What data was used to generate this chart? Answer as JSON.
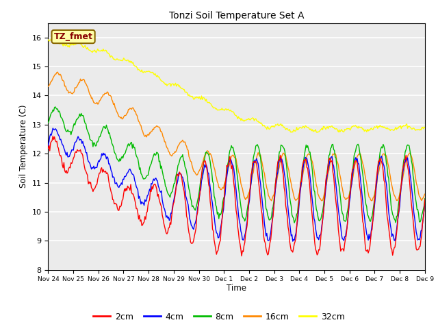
{
  "title": "Tonzi Soil Temperature Set A",
  "ylabel": "Soil Temperature (C)",
  "xlabel": "Time",
  "ylim": [
    8.0,
    16.5
  ],
  "yticks": [
    8.0,
    9.0,
    10.0,
    11.0,
    12.0,
    13.0,
    14.0,
    15.0,
    16.0
  ],
  "bg_color": "#ebebeb",
  "fig_color": "#ffffff",
  "annotation_text": "TZ_fmet",
  "annotation_bg": "#ffffaa",
  "annotation_border": "#aa8800",
  "legend_entries": [
    "2cm",
    "4cm",
    "8cm",
    "16cm",
    "32cm"
  ],
  "legend_colors": [
    "#ff0000",
    "#0000ff",
    "#00bb00",
    "#ff8800",
    "#ffff00"
  ],
  "line_colors": [
    "#ff0000",
    "#0000ff",
    "#00bb00",
    "#ff8800",
    "#ffff00"
  ],
  "n_points": 480,
  "x_tick_labels": [
    "Nov 24",
    "Nov 25",
    "Nov 26",
    "Nov 27",
    "Nov 28",
    "Nov 29",
    "Nov 30",
    "Dec 1",
    "Dec 2",
    "Dec 3",
    "Dec 4",
    "Dec 5",
    "Dec 6",
    "Dec 7",
    "Dec 8",
    "Dec 9"
  ],
  "n_days": 16
}
